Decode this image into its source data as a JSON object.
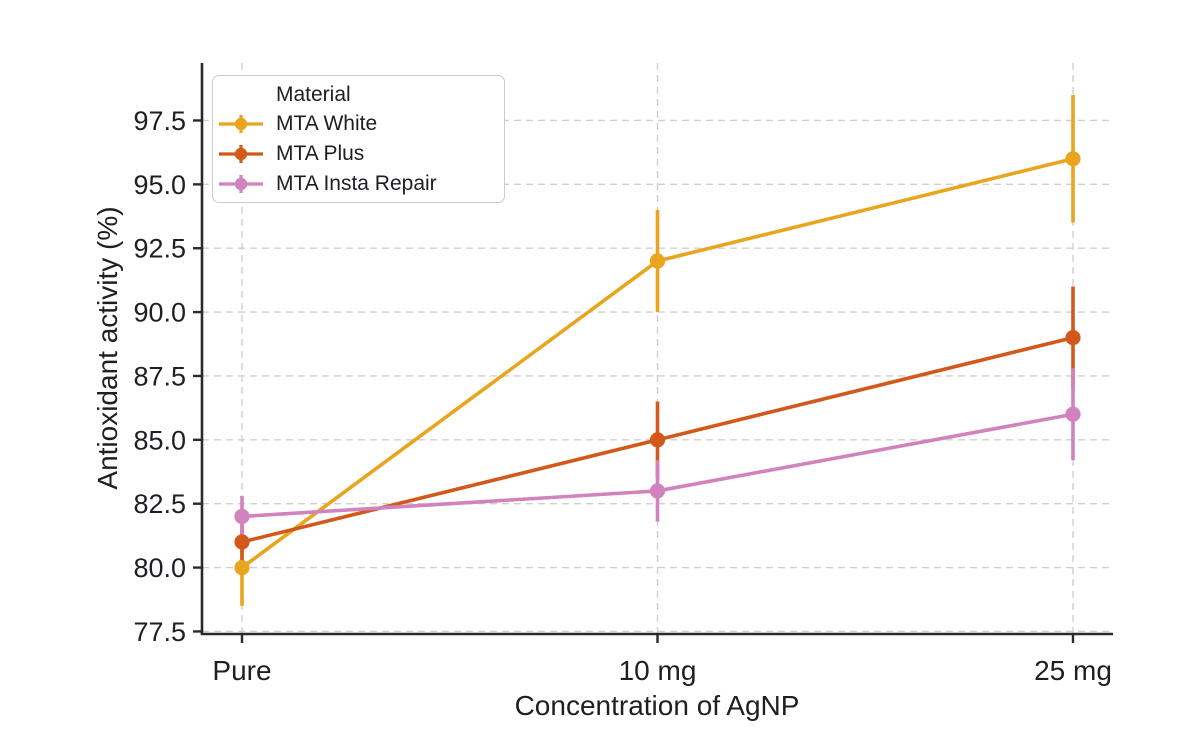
{
  "figure": {
    "background": "#ffffff",
    "text_color": "#1e1e24",
    "spine_color": "#2a2a2a",
    "grid_color": "#cfcfcf",
    "legend_border_color": "#cccccc"
  },
  "chart_data": {
    "type": "line",
    "title": "",
    "xlabel": "Concentration of AgNP",
    "ylabel": "Antioxidant activity (%)",
    "categories": [
      "Pure",
      "10 mg",
      "25 mg"
    ],
    "yticks": [
      77.5,
      80.0,
      82.5,
      85.0,
      87.5,
      90.0,
      92.5,
      95.0,
      97.5
    ],
    "ylim": [
      77.4,
      99.75
    ],
    "grid": true,
    "grid_style": "dashed",
    "legend_title": "Material",
    "legend_position": "upper-left",
    "marker": "circle",
    "error_bars": "vertical, no caps",
    "series": [
      {
        "name": "MTA White",
        "color": "#E8A51D",
        "values": [
          80.0,
          92.0,
          96.0
        ],
        "error": [
          1.5,
          2.0,
          2.5
        ]
      },
      {
        "name": "MTA Plus",
        "color": "#D2591B",
        "values": [
          81.0,
          85.0,
          89.0
        ],
        "error": [
          0.8,
          1.5,
          2.0
        ]
      },
      {
        "name": "MTA Insta Repair",
        "color": "#D282BC",
        "values": [
          82.0,
          83.0,
          86.0
        ],
        "error": [
          0.8,
          1.2,
          1.8
        ]
      }
    ]
  }
}
